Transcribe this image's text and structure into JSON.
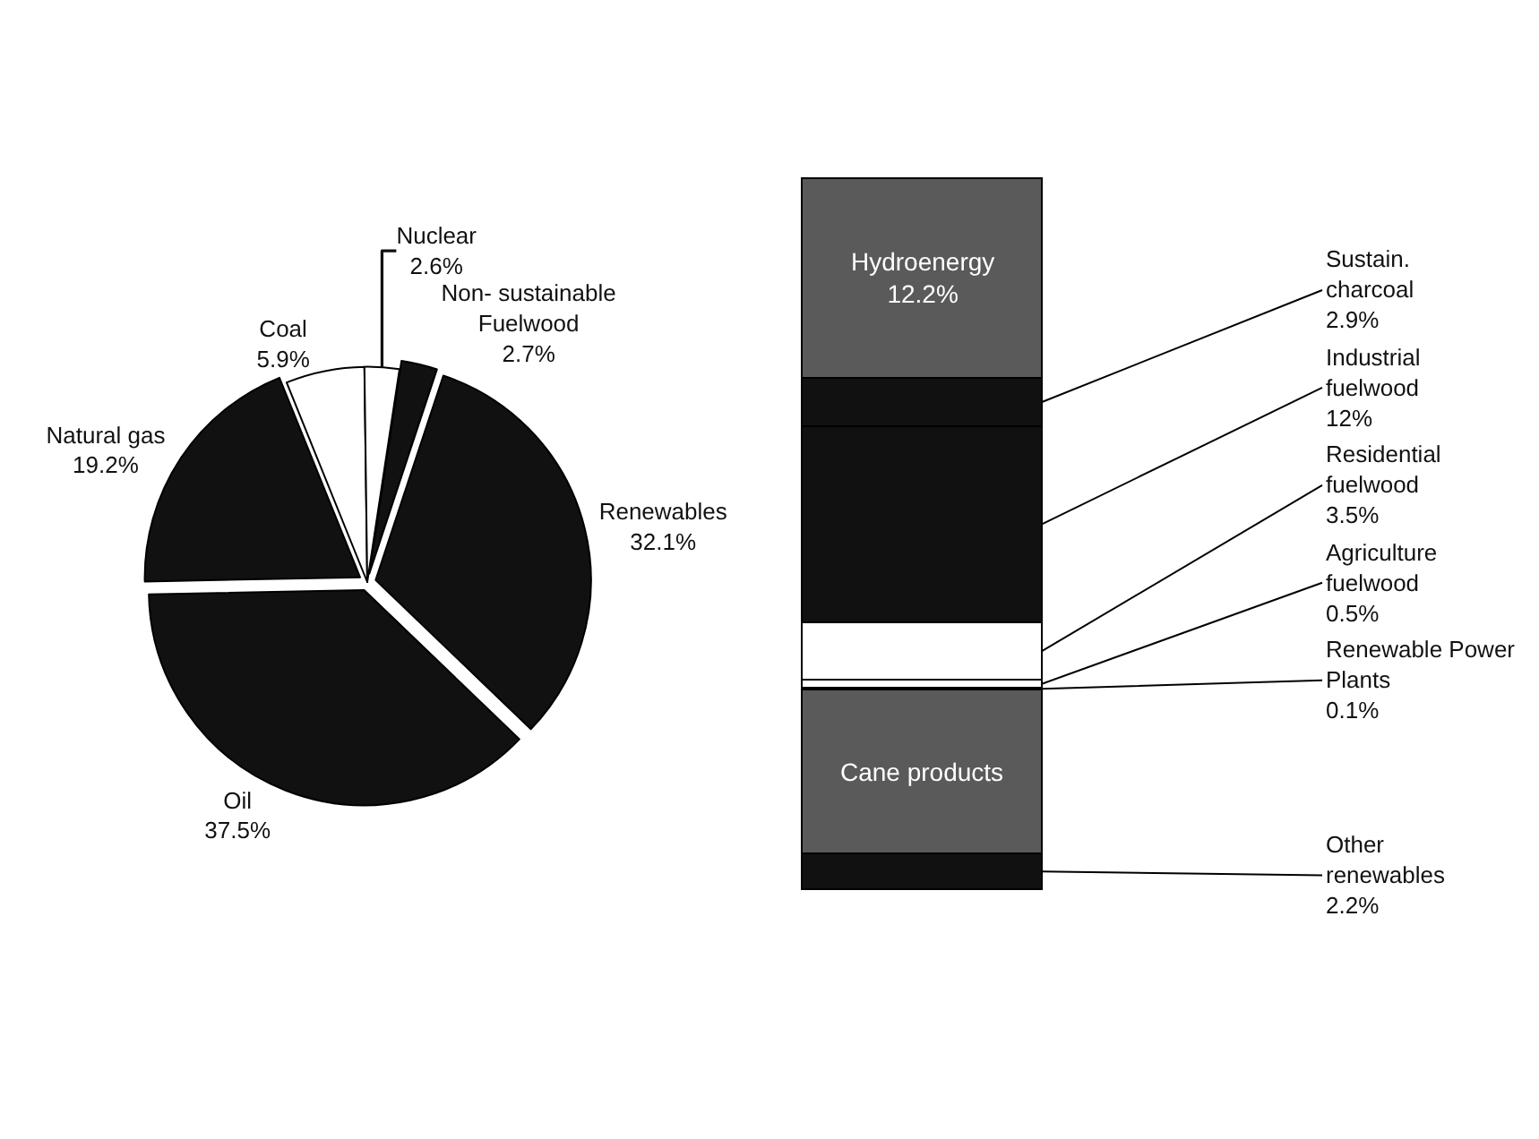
{
  "chart_data": [
    {
      "type": "pie",
      "categories": [
        "Coal",
        "Nuclear",
        "Non- sustainable Fuelwood",
        "Renewables",
        "Oil",
        "Natural gas"
      ],
      "values": [
        5.9,
        2.6,
        2.7,
        32.1,
        37.5,
        19.2
      ],
      "value_labels": [
        "5.9%",
        "2.6%",
        "2.7%",
        "32.1%",
        "37.5%",
        "19.2%"
      ],
      "colors": [
        "#ffffff",
        "#ffffff",
        "#111111",
        "#111111",
        "#111111",
        "#111111"
      ],
      "legend": false
    },
    {
      "type": "bar",
      "stacked": true,
      "categories": [
        null
      ],
      "legend": false,
      "series": [
        {
          "name": "Other renewables",
          "color": "#111111",
          "values": [
            2.2
          ],
          "value_labels": [
            "2.2%"
          ]
        },
        {
          "name": "Cane products",
          "color": "#5a5a5a",
          "values": [
            10
          ],
          "value_labels": [
            null
          ]
        },
        {
          "name": "Renewable Power Plants",
          "color": "#111111",
          "values": [
            0.1
          ],
          "value_labels": [
            "0.1%"
          ]
        },
        {
          "name": "Agriculture fuelwood",
          "color": "#ffffff",
          "values": [
            0.5
          ],
          "value_labels": [
            "0.5%"
          ]
        },
        {
          "name": "Residential fuelwood",
          "color": "#ffffff",
          "values": [
            3.5
          ],
          "value_labels": [
            "3.5%"
          ]
        },
        {
          "name": "Industrial fuelwood",
          "color": "#111111",
          "values": [
            12
          ],
          "value_labels": [
            "12%"
          ]
        },
        {
          "name": "Sustain. charcoal",
          "color": "#111111",
          "values": [
            2.9
          ],
          "value_labels": [
            "2.9%"
          ]
        },
        {
          "name": "Hydroenergy",
          "color": "#5a5a5a",
          "values": [
            12.2
          ],
          "value_labels": [
            "12.2%"
          ]
        }
      ]
    }
  ]
}
